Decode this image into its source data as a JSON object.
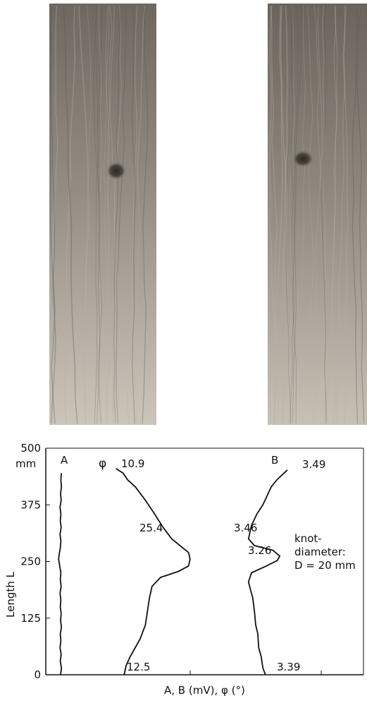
{
  "photo": {
    "description_labels": [],
    "board_colors": {
      "light": "#c9c2b6",
      "mid": "#9a948a",
      "dark": "#615c55",
      "knot": "#3a3530"
    }
  },
  "chart_data": {
    "type": "line",
    "title": "",
    "xlabel": "A, B (mV), φ (°)",
    "ylabel": "Length L",
    "y_unit": "mm",
    "ylim": [
      0,
      500
    ],
    "y_ticks": [
      "0",
      "125",
      "250",
      "375",
      "500"
    ],
    "grid": false,
    "series": [
      {
        "name": "A",
        "points": [
          [
            0.15,
            0
          ],
          [
            0.18,
            15
          ],
          [
            0.14,
            30
          ],
          [
            0.17,
            45
          ],
          [
            0.13,
            60
          ],
          [
            0.16,
            75
          ],
          [
            0.14,
            90
          ],
          [
            0.18,
            105
          ],
          [
            0.15,
            120
          ],
          [
            0.17,
            135
          ],
          [
            0.14,
            150
          ],
          [
            0.16,
            165
          ],
          [
            0.13,
            180
          ],
          [
            0.17,
            195
          ],
          [
            0.14,
            210
          ],
          [
            0.16,
            225
          ],
          [
            0.12,
            240
          ],
          [
            0.08,
            255
          ],
          [
            0.1,
            265
          ],
          [
            0.14,
            280
          ],
          [
            0.16,
            295
          ],
          [
            0.13,
            310
          ],
          [
            0.17,
            325
          ],
          [
            0.14,
            340
          ],
          [
            0.16,
            355
          ],
          [
            0.13,
            370
          ],
          [
            0.17,
            385
          ],
          [
            0.15,
            400
          ],
          [
            0.18,
            415
          ],
          [
            0.16,
            430
          ],
          [
            0.18,
            445
          ]
        ]
      },
      {
        "name": "φ",
        "points": [
          [
            0.78,
            0
          ],
          [
            0.82,
            20
          ],
          [
            0.9,
            40
          ],
          [
            1.0,
            60
          ],
          [
            1.1,
            80
          ],
          [
            1.2,
            110
          ],
          [
            1.24,
            140
          ],
          [
            1.28,
            170
          ],
          [
            1.33,
            195
          ],
          [
            1.5,
            215
          ],
          [
            1.85,
            228
          ],
          [
            2.05,
            240
          ],
          [
            2.08,
            255
          ],
          [
            2.05,
            270
          ],
          [
            1.88,
            285
          ],
          [
            1.72,
            300
          ],
          [
            1.55,
            325
          ],
          [
            1.38,
            355
          ],
          [
            1.2,
            385
          ],
          [
            1.0,
            415
          ],
          [
            0.85,
            430
          ],
          [
            0.76,
            445
          ],
          [
            0.62,
            455
          ]
        ],
        "labels": [
          {
            "text": "10.9",
            "L": 445
          },
          {
            "text": "25.4",
            "L": 258
          },
          {
            "text": "12.5",
            "L": 25
          }
        ]
      },
      {
        "name": "B",
        "points": [
          [
            3.28,
            0
          ],
          [
            3.22,
            15
          ],
          [
            3.18,
            40
          ],
          [
            3.12,
            60
          ],
          [
            3.1,
            90
          ],
          [
            3.05,
            110
          ],
          [
            3.02,
            140
          ],
          [
            2.98,
            170
          ],
          [
            2.92,
            190
          ],
          [
            2.88,
            205
          ],
          [
            2.95,
            225
          ],
          [
            3.3,
            240
          ],
          [
            3.56,
            252
          ],
          [
            3.62,
            262
          ],
          [
            3.45,
            275
          ],
          [
            3.02,
            285
          ],
          [
            2.88,
            300
          ],
          [
            2.95,
            330
          ],
          [
            3.08,
            355
          ],
          [
            3.22,
            375
          ],
          [
            3.32,
            395
          ],
          [
            3.42,
            415
          ],
          [
            3.55,
            430
          ],
          [
            3.72,
            445
          ],
          [
            3.8,
            452
          ]
        ],
        "labels": [
          {
            "text": "3.49",
            "L": 440
          },
          {
            "text": "3.46",
            "L": 258
          },
          {
            "text": "3.26",
            "L": 205
          },
          {
            "text": "3.39",
            "L": 25
          }
        ]
      }
    ],
    "annotations": [
      "knot-",
      "diameter:",
      "D = 20 mm"
    ],
    "series_markers": [
      "A",
      "φ",
      "B"
    ]
  }
}
